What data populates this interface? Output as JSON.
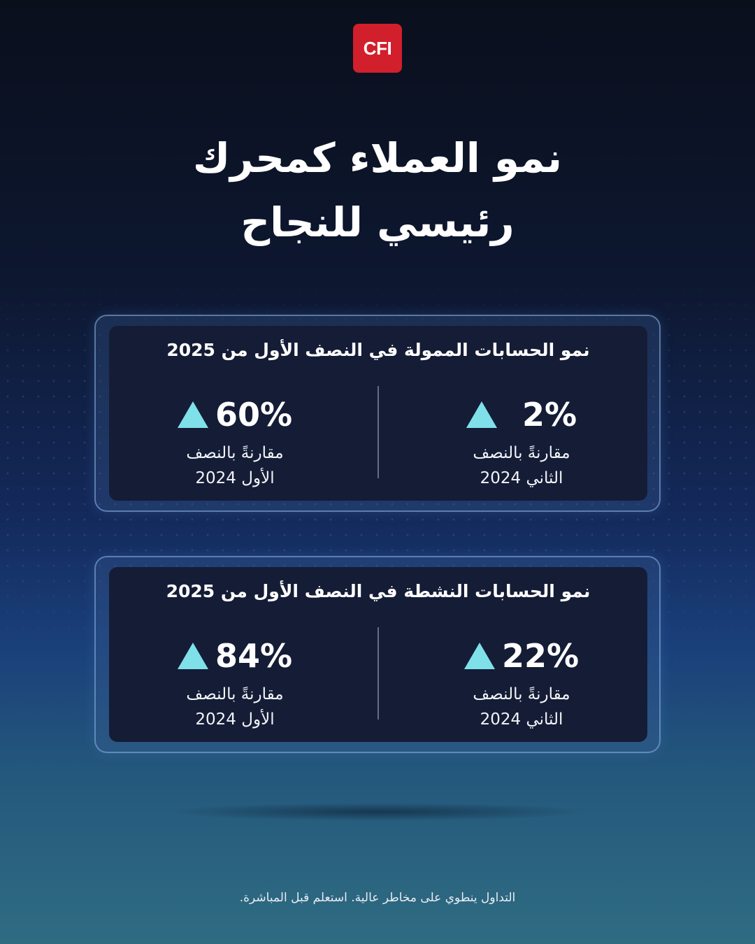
{
  "brand": {
    "logo_text": "CFI",
    "logo_color": "#d11f2b"
  },
  "title": {
    "line1": "نمو العملاء كمحرك",
    "line2": "رئيسي للنجاح"
  },
  "accent_color": "#7fe0ea",
  "cards": [
    {
      "title": "نمو الحسابات الممولة في النصف الأول من 2025",
      "right": {
        "value": "2%",
        "desc_line1": "مقارنةً بالنصف",
        "desc_line2": "الثاني 2024",
        "icon": "up-triangle-icon"
      },
      "left": {
        "value": "60%",
        "desc_line1": "مقارنةً بالنصف",
        "desc_line2": "الأول 2024",
        "icon": "up-triangle-icon"
      }
    },
    {
      "title": "نمو الحسابات النشطة في النصف الأول من 2025",
      "right": {
        "value": "22%",
        "desc_line1": "مقارنةً بالنصف",
        "desc_line2": "الثاني 2024",
        "icon": "up-triangle-icon"
      },
      "left": {
        "value": "84%",
        "desc_line1": "مقارنةً بالنصف",
        "desc_line2": "الأول 2024",
        "icon": "up-triangle-icon"
      }
    }
  ],
  "disclaimer": "التداول ينطوي على مخاطر عالية. استعلم قبل المباشرة."
}
